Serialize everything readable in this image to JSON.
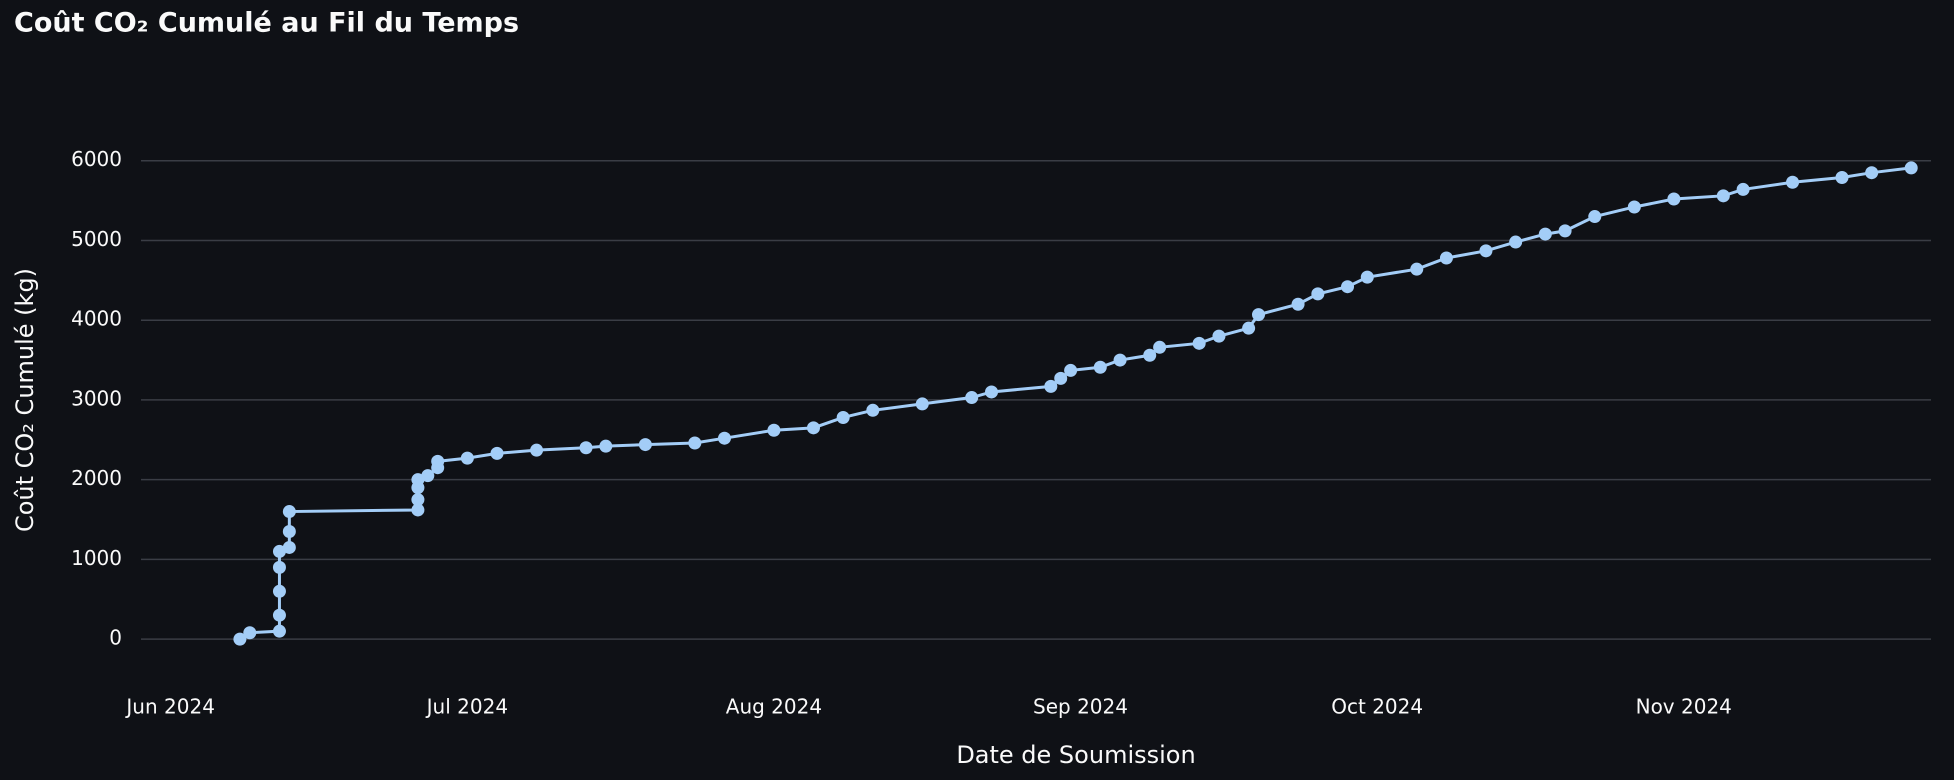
{
  "chart_data": {
    "type": "line",
    "title": "Coût CO₂ Cumulé au Fil du Temps",
    "x_label": "Date de Soumission",
    "y_label": "Coût CO₂ Cumulé (kg)",
    "color": "#a3cdf7",
    "grid": true,
    "x": [
      160,
      161,
      164,
      164,
      164,
      164,
      164,
      165,
      165,
      165,
      178,
      178,
      178,
      178,
      179,
      180,
      180,
      183,
      186,
      190,
      195,
      197,
      201,
      206,
      209,
      214,
      218,
      221,
      224,
      229,
      234,
      236,
      242,
      243,
      244,
      247,
      249,
      252,
      253,
      257,
      259,
      262,
      263,
      267,
      269,
      272,
      274,
      279,
      282,
      286,
      289,
      292,
      294,
      297,
      301,
      305,
      310,
      312,
      317,
      322,
      325,
      329
    ],
    "values": [
      0,
      80,
      100,
      300,
      600,
      900,
      1100,
      1150,
      1350,
      1600,
      1620,
      1750,
      1900,
      2000,
      2050,
      2150,
      2230,
      2270,
      2330,
      2370,
      2400,
      2420,
      2440,
      2460,
      2520,
      2620,
      2650,
      2780,
      2870,
      2950,
      3030,
      3100,
      3170,
      3270,
      3370,
      3410,
      3500,
      3560,
      3660,
      3710,
      3800,
      3900,
      4070,
      4200,
      4330,
      4420,
      4540,
      4640,
      4780,
      4870,
      4980,
      5080,
      5120,
      5300,
      5420,
      5520,
      5560,
      5640,
      5730,
      5790,
      5850,
      5910
    ],
    "xlim": [
      150,
      331
    ],
    "xticks": [
      {
        "value": 153,
        "label": "Jun 2024"
      },
      {
        "value": 183,
        "label": "Jul 2024"
      },
      {
        "value": 214,
        "label": "Aug 2024"
      },
      {
        "value": 245,
        "label": "Sep 2024"
      },
      {
        "value": 275,
        "label": "Oct 2024"
      },
      {
        "value": 306,
        "label": "Nov 2024"
      }
    ],
    "ylim": [
      -500,
      7000
    ],
    "yticks": [
      0,
      1000,
      2000,
      3000,
      4000,
      5000,
      6000
    ]
  }
}
